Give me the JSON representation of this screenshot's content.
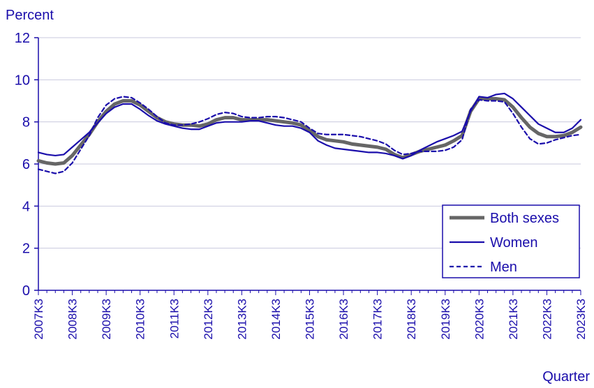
{
  "chart_data": {
    "type": "line",
    "ylabel": "Percent",
    "xlabel": "Quarter",
    "ylim": [
      0,
      12
    ],
    "y_ticks": [
      0,
      2,
      4,
      6,
      8,
      10,
      12
    ],
    "x_tick_labels": [
      "2007K3",
      "2008K3",
      "2009K3",
      "2010K3",
      "2011K3",
      "2012K3",
      "2013K3",
      "2014K3",
      "2015K3",
      "2016K3",
      "2017K3",
      "2018K3",
      "2019K3",
      "2020K3",
      "2021K3",
      "2022K3",
      "2023K3"
    ],
    "x_start": "2007K3",
    "x_end": "2023K3",
    "grid": true,
    "legend_position": "bottom-right",
    "colors": {
      "axis": "#1a0dab",
      "grid": "#c9c9de",
      "both": "#666666",
      "women": "#1a0dab",
      "men": "#1a0dab"
    },
    "series": [
      {
        "name": "Both sexes",
        "style": "thick-gray",
        "values": [
          6.15,
          6.05,
          6.0,
          6.05,
          6.4,
          6.9,
          7.4,
          8.0,
          8.5,
          8.85,
          9.0,
          9.0,
          8.8,
          8.5,
          8.2,
          8.0,
          7.9,
          7.85,
          7.85,
          7.8,
          7.9,
          8.1,
          8.2,
          8.2,
          8.1,
          8.1,
          8.1,
          8.1,
          8.05,
          8.0,
          7.95,
          7.85,
          7.6,
          7.3,
          7.15,
          7.1,
          7.05,
          6.95,
          6.9,
          6.85,
          6.8,
          6.7,
          6.45,
          6.3,
          6.45,
          6.6,
          6.7,
          6.8,
          6.9,
          7.1,
          7.35,
          8.5,
          9.1,
          9.1,
          9.1,
          9.05,
          8.7,
          8.2,
          7.75,
          7.45,
          7.3,
          7.3,
          7.35,
          7.5,
          7.75
        ]
      },
      {
        "name": "Women",
        "style": "solid",
        "values": [
          6.55,
          6.45,
          6.4,
          6.45,
          6.8,
          7.15,
          7.5,
          7.95,
          8.4,
          8.7,
          8.85,
          8.85,
          8.6,
          8.3,
          8.05,
          7.9,
          7.8,
          7.7,
          7.65,
          7.65,
          7.8,
          7.95,
          8.0,
          8.0,
          8.0,
          8.05,
          8.05,
          7.95,
          7.85,
          7.8,
          7.8,
          7.7,
          7.5,
          7.1,
          6.9,
          6.75,
          6.7,
          6.65,
          6.6,
          6.55,
          6.55,
          6.5,
          6.4,
          6.25,
          6.4,
          6.65,
          6.85,
          7.05,
          7.2,
          7.35,
          7.55,
          8.5,
          9.2,
          9.15,
          9.3,
          9.35,
          9.1,
          8.7,
          8.3,
          7.9,
          7.7,
          7.5,
          7.5,
          7.7,
          8.1
        ]
      },
      {
        "name": "Men",
        "style": "dashed",
        "values": [
          5.75,
          5.65,
          5.55,
          5.65,
          6.05,
          6.7,
          7.35,
          8.2,
          8.8,
          9.1,
          9.2,
          9.15,
          8.9,
          8.6,
          8.25,
          7.95,
          7.85,
          7.85,
          7.9,
          8.0,
          8.15,
          8.35,
          8.45,
          8.4,
          8.25,
          8.2,
          8.2,
          8.25,
          8.25,
          8.2,
          8.1,
          8.0,
          7.7,
          7.45,
          7.4,
          7.4,
          7.4,
          7.35,
          7.3,
          7.2,
          7.1,
          6.95,
          6.65,
          6.45,
          6.5,
          6.6,
          6.6,
          6.6,
          6.65,
          6.8,
          7.15,
          8.6,
          9.05,
          9.0,
          9.0,
          8.95,
          8.4,
          7.75,
          7.2,
          6.95,
          7.0,
          7.15,
          7.25,
          7.35,
          7.4
        ]
      }
    ]
  }
}
